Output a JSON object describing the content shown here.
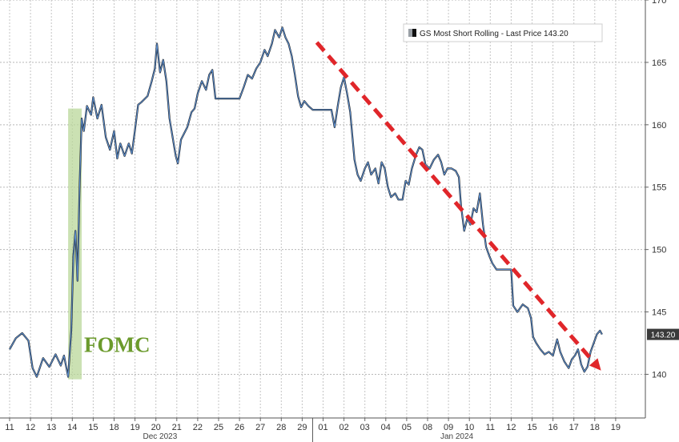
{
  "chart_data": {
    "type": "line",
    "legend": {
      "label": "GS Most Short Rolling - Last Price 143.20",
      "position": "top-right"
    },
    "last_price_label": "143.20",
    "last_price": 143.2,
    "ylim": [
      136.5,
      170
    ],
    "y_ticks": [
      "140",
      "145",
      "150",
      "155",
      "160",
      "165",
      "170"
    ],
    "x_ticks": [
      "11",
      "12",
      "13",
      "14",
      "15",
      "18",
      "19",
      "20",
      "21",
      "22",
      "25",
      "26",
      "27",
      "28",
      "29",
      "01",
      "02",
      "03",
      "04",
      "05",
      "08",
      "09",
      "10",
      "11",
      "12",
      "15",
      "16",
      "17",
      "18",
      "19"
    ],
    "month_labels": [
      "Dec 2023",
      "Jan 2024"
    ],
    "annotation": {
      "text": "FOMC",
      "x_from": 2.8,
      "x_to": 3.45,
      "y_from": 139.6,
      "y_to": 161.3
    },
    "trend_arrow": {
      "from": [
        14.7,
        166.6
      ],
      "to": [
        28.3,
        140.3
      ]
    },
    "grid": true,
    "series": [
      {
        "values": [
          [
            0.0,
            142.0
          ],
          [
            0.3,
            142.9
          ],
          [
            0.6,
            143.3
          ],
          [
            0.9,
            142.7
          ],
          [
            1.1,
            140.5
          ],
          [
            1.3,
            139.8
          ],
          [
            1.6,
            141.3
          ],
          [
            1.9,
            140.6
          ],
          [
            2.2,
            141.6
          ],
          [
            2.45,
            140.7
          ],
          [
            2.6,
            141.5
          ],
          [
            2.8,
            139.8
          ],
          [
            2.95,
            143.5
          ],
          [
            3.05,
            149.5
          ],
          [
            3.15,
            151.5
          ],
          [
            3.25,
            147.5
          ],
          [
            3.35,
            155.0
          ],
          [
            3.45,
            160.5
          ],
          [
            3.55,
            159.5
          ],
          [
            3.7,
            161.5
          ],
          [
            3.9,
            160.8
          ],
          [
            4.0,
            162.2
          ],
          [
            4.2,
            160.5
          ],
          [
            4.4,
            161.6
          ],
          [
            4.6,
            159.0
          ],
          [
            4.8,
            158.0
          ],
          [
            5.0,
            159.5
          ],
          [
            5.15,
            157.3
          ],
          [
            5.3,
            158.5
          ],
          [
            5.5,
            157.5
          ],
          [
            5.7,
            158.5
          ],
          [
            5.85,
            157.7
          ],
          [
            6.0,
            159.6
          ],
          [
            6.15,
            161.6
          ],
          [
            6.3,
            161.8
          ],
          [
            6.6,
            162.3
          ],
          [
            6.8,
            163.5
          ],
          [
            6.95,
            164.5
          ],
          [
            7.05,
            166.5
          ],
          [
            7.2,
            164.2
          ],
          [
            7.35,
            165.2
          ],
          [
            7.5,
            163.5
          ],
          [
            7.65,
            160.5
          ],
          [
            7.8,
            159.0
          ],
          [
            7.95,
            157.5
          ],
          [
            8.05,
            156.9
          ],
          [
            8.2,
            158.8
          ],
          [
            8.35,
            159.3
          ],
          [
            8.5,
            159.8
          ],
          [
            8.7,
            161.0
          ],
          [
            8.85,
            161.3
          ],
          [
            9.0,
            162.5
          ],
          [
            9.2,
            163.5
          ],
          [
            9.4,
            162.8
          ],
          [
            9.55,
            164.0
          ],
          [
            9.7,
            164.4
          ],
          [
            9.85,
            162.1
          ],
          [
            10.0,
            162.1
          ],
          [
            10.5,
            162.1
          ],
          [
            11.0,
            162.1
          ],
          [
            11.2,
            163.0
          ],
          [
            11.4,
            164.0
          ],
          [
            11.6,
            163.7
          ],
          [
            11.8,
            164.5
          ],
          [
            12.0,
            165.0
          ],
          [
            12.2,
            166.0
          ],
          [
            12.35,
            165.5
          ],
          [
            12.55,
            166.5
          ],
          [
            12.7,
            167.6
          ],
          [
            12.9,
            167.0
          ],
          [
            13.05,
            167.8
          ],
          [
            13.2,
            167.0
          ],
          [
            13.35,
            166.5
          ],
          [
            13.5,
            165.5
          ],
          [
            13.65,
            164.0
          ],
          [
            13.8,
            162.3
          ],
          [
            13.95,
            161.4
          ],
          [
            14.1,
            161.9
          ],
          [
            14.3,
            161.5
          ],
          [
            14.5,
            161.2
          ],
          [
            14.7,
            161.2
          ],
          [
            15.0,
            161.2
          ],
          [
            15.2,
            161.2
          ],
          [
            15.4,
            161.2
          ],
          [
            15.55,
            159.8
          ],
          [
            15.7,
            161.5
          ],
          [
            15.85,
            163.0
          ],
          [
            16.0,
            163.8
          ],
          [
            16.15,
            162.5
          ],
          [
            16.3,
            161.0
          ],
          [
            16.5,
            157.2
          ],
          [
            16.65,
            156.0
          ],
          [
            16.8,
            155.5
          ],
          [
            17.0,
            156.5
          ],
          [
            17.15,
            157.0
          ],
          [
            17.3,
            156.0
          ],
          [
            17.5,
            156.5
          ],
          [
            17.65,
            155.3
          ],
          [
            17.8,
            157.0
          ],
          [
            17.95,
            156.5
          ],
          [
            18.1,
            155.0
          ],
          [
            18.25,
            154.2
          ],
          [
            18.45,
            154.5
          ],
          [
            18.6,
            154.0
          ],
          [
            18.8,
            154.0
          ],
          [
            18.95,
            155.5
          ],
          [
            19.1,
            155.2
          ],
          [
            19.25,
            156.5
          ],
          [
            19.45,
            157.6
          ],
          [
            19.6,
            158.2
          ],
          [
            19.75,
            158.0
          ],
          [
            19.9,
            156.8
          ],
          [
            20.1,
            156.5
          ],
          [
            20.3,
            157.2
          ],
          [
            20.5,
            157.6
          ],
          [
            20.65,
            157.0
          ],
          [
            20.8,
            156.0
          ],
          [
            20.95,
            156.5
          ],
          [
            21.15,
            156.5
          ],
          [
            21.35,
            156.3
          ],
          [
            21.5,
            155.8
          ],
          [
            21.6,
            153.5
          ],
          [
            21.75,
            151.5
          ],
          [
            21.9,
            152.5
          ],
          [
            22.05,
            152.0
          ],
          [
            22.2,
            153.3
          ],
          [
            22.35,
            153.0
          ],
          [
            22.5,
            154.5
          ],
          [
            22.65,
            152.0
          ],
          [
            22.8,
            150.2
          ],
          [
            22.95,
            149.5
          ],
          [
            23.1,
            148.9
          ],
          [
            23.3,
            148.4
          ],
          [
            23.5,
            148.4
          ],
          [
            23.8,
            148.4
          ],
          [
            24.0,
            148.4
          ],
          [
            24.1,
            145.5
          ],
          [
            24.3,
            145.0
          ],
          [
            24.55,
            145.6
          ],
          [
            24.8,
            145.3
          ],
          [
            24.95,
            144.5
          ],
          [
            25.05,
            143.0
          ],
          [
            25.2,
            142.5
          ],
          [
            25.4,
            142.0
          ],
          [
            25.6,
            141.6
          ],
          [
            25.8,
            141.8
          ],
          [
            26.0,
            141.5
          ],
          [
            26.2,
            142.8
          ],
          [
            26.35,
            141.8
          ],
          [
            26.55,
            141.0
          ],
          [
            26.75,
            140.5
          ],
          [
            26.9,
            141.2
          ],
          [
            27.05,
            141.5
          ],
          [
            27.2,
            142.0
          ],
          [
            27.35,
            140.8
          ],
          [
            27.5,
            140.2
          ],
          [
            27.65,
            140.6
          ],
          [
            27.8,
            141.8
          ],
          [
            27.95,
            142.5
          ],
          [
            28.1,
            143.2
          ],
          [
            28.25,
            143.5
          ],
          [
            28.35,
            143.2
          ]
        ]
      }
    ]
  }
}
